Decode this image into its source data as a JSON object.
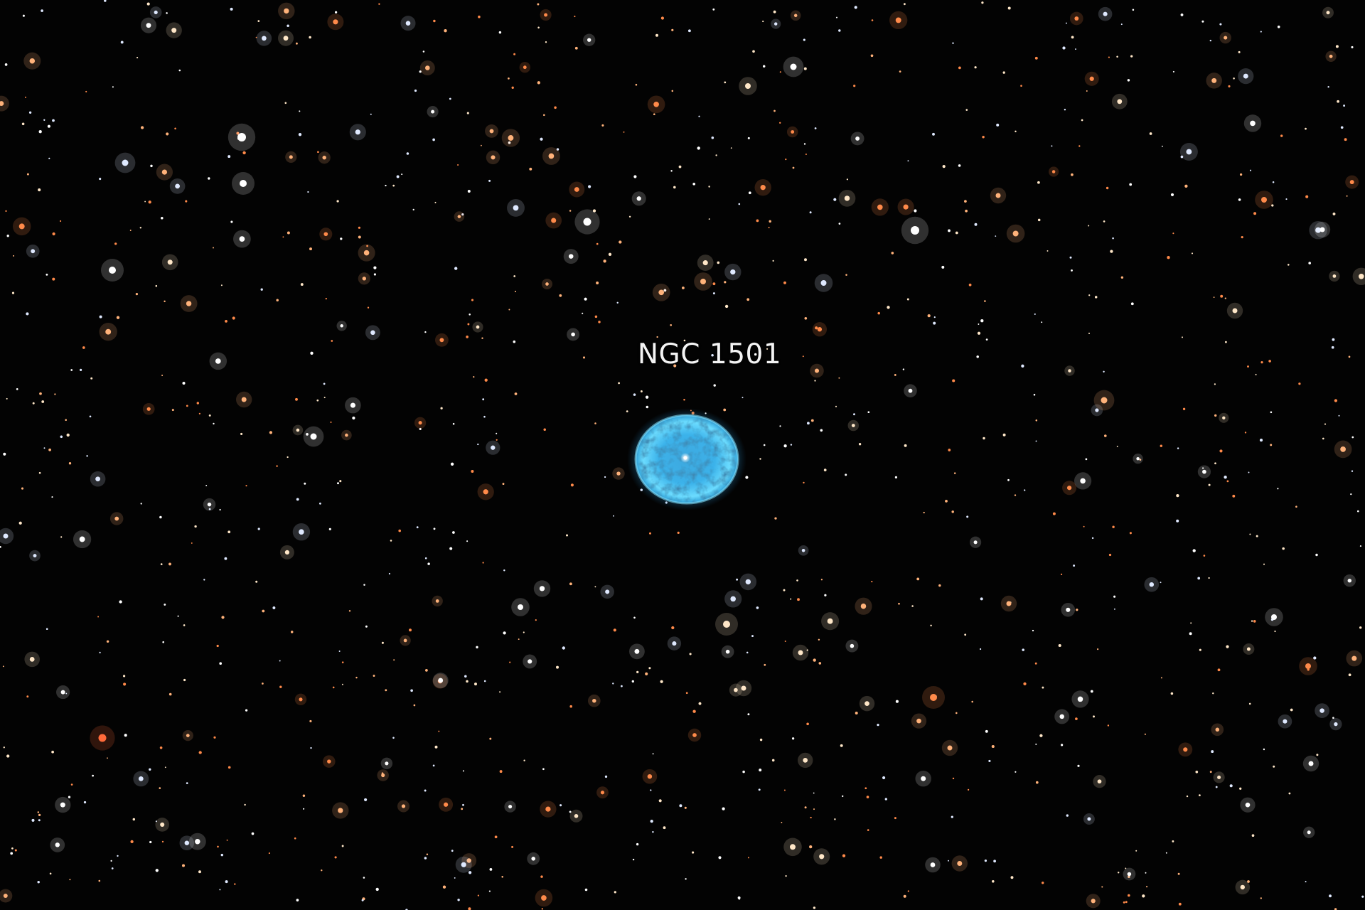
{
  "image": {
    "subject": "planetary-nebula-starfield",
    "background_color": "#030303",
    "nebula_colors": [
      "#5fd4ff",
      "#2a9fd8",
      "#0e4e7a"
    ],
    "star_colors": [
      "#ffffff",
      "#ffe7c8",
      "#ffb27a",
      "#ff8a4a",
      "#dfe9ff"
    ]
  },
  "annotation": {
    "label": "NGC 1501"
  }
}
